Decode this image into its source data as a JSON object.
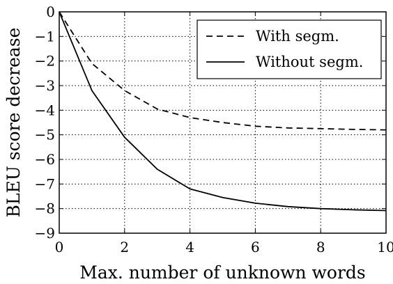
{
  "chart_data": {
    "type": "line",
    "title": "",
    "xlabel": "Max. number of unknown words",
    "ylabel": "BLEU score decrease",
    "xlim": [
      0,
      10
    ],
    "ylim": [
      -9,
      0
    ],
    "xticks": [
      0,
      2,
      4,
      6,
      8,
      10
    ],
    "yticks": [
      0,
      -1,
      -2,
      -3,
      -4,
      -5,
      -6,
      -7,
      -8,
      -9
    ],
    "x_tick_labels": [
      "0",
      "2",
      "4",
      "6",
      "8",
      "10"
    ],
    "y_tick_labels": [
      "0",
      "−1",
      "−2",
      "−3",
      "−4",
      "−5",
      "−6",
      "−7",
      "−8",
      "−9"
    ],
    "grid": true,
    "legend_position": "top-right",
    "x": [
      0,
      1,
      2,
      3,
      4,
      5,
      6,
      7,
      8,
      9,
      10
    ],
    "series": [
      {
        "name": "With segm.",
        "style": "dashed",
        "color": "#000000",
        "values": [
          0,
          -2.1,
          -3.2,
          -3.95,
          -4.3,
          -4.5,
          -4.65,
          -4.72,
          -4.75,
          -4.78,
          -4.8
        ]
      },
      {
        "name": "Without segm.",
        "style": "solid",
        "color": "#000000",
        "values": [
          0,
          -3.2,
          -5.1,
          -6.4,
          -7.2,
          -7.55,
          -7.78,
          -7.92,
          -8.0,
          -8.05,
          -8.08
        ]
      }
    ]
  }
}
